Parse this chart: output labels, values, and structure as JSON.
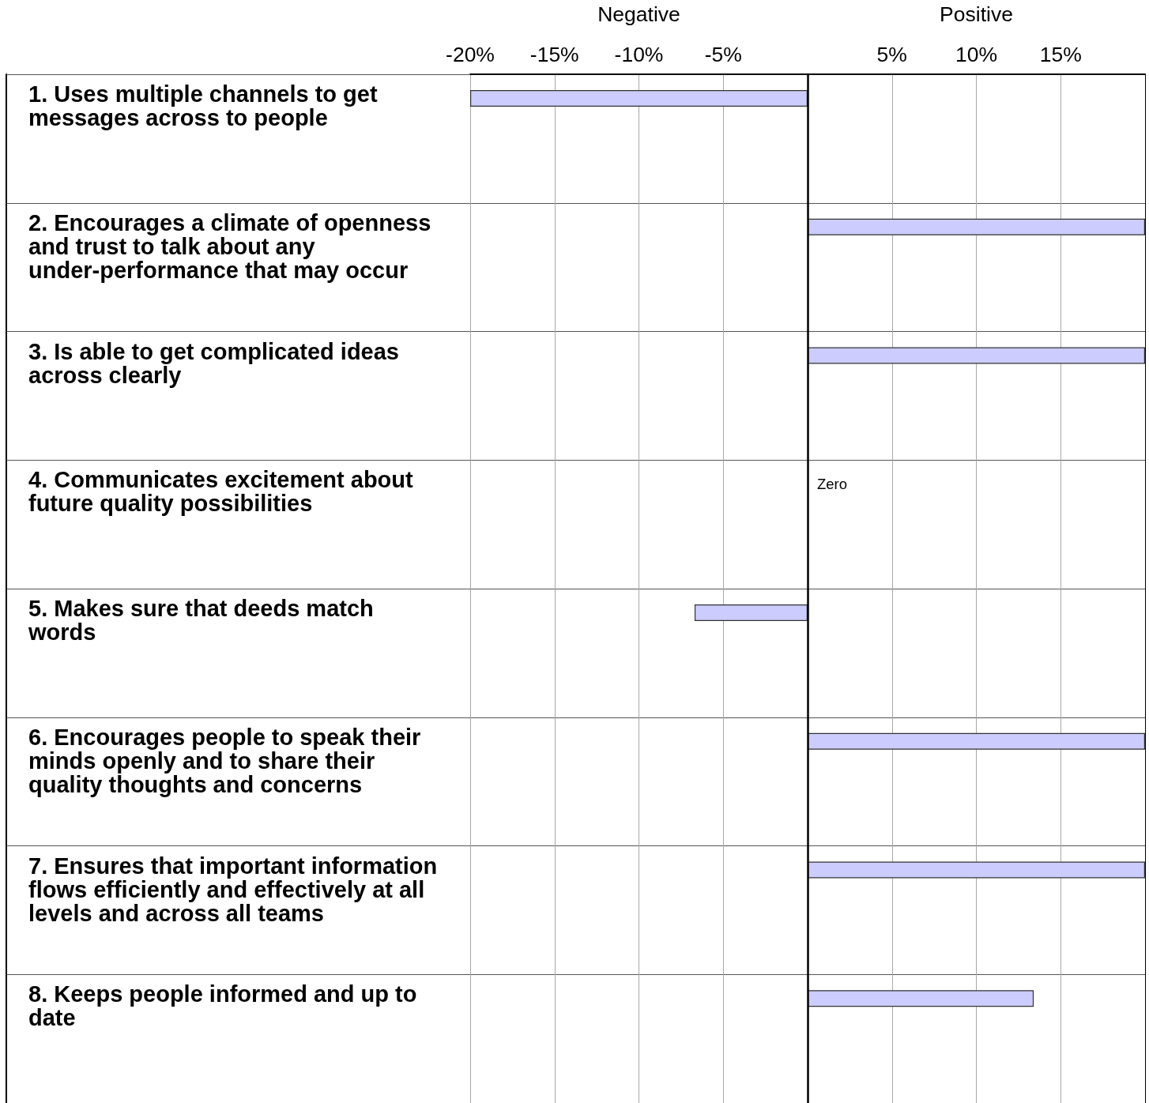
{
  "chart_data": {
    "type": "bar",
    "orientation": "horizontal",
    "categories": [
      "1. Uses multiple channels to get messages across to people",
      "2. Encourages a climate of openness and trust to talk about any under-performance that may occur",
      "3. Is able to get complicated ideas across clearly",
      "4. Communicates excitement about future quality possibilities",
      "5. Makes sure that deeds match words",
      "6. Encourages people to speak their minds openly and to share their quality thoughts and concerns",
      "7. Ensures that important information flows efficiently and effectively at all levels and across all teams",
      "8. Keeps people informed and up to date"
    ],
    "values": [
      -20,
      20,
      20,
      0,
      -6.7,
      20,
      20,
      13.4
    ],
    "color": "#ccccff",
    "value_labels": [
      null,
      null,
      null,
      "Zero",
      null,
      null,
      null,
      null
    ],
    "xlim": [
      -20,
      20
    ],
    "xticks": [
      {
        "value": -20,
        "label": "-20%"
      },
      {
        "value": -15,
        "label": "-15%"
      },
      {
        "value": -10,
        "label": "-10%"
      },
      {
        "value": -5,
        "label": "-5%"
      },
      {
        "value": 0,
        "label": null
      },
      {
        "value": 5,
        "label": "5%"
      },
      {
        "value": 10,
        "label": "10%"
      },
      {
        "value": 15,
        "label": "15%"
      },
      {
        "value": 20,
        "label": null
      }
    ],
    "grid": true,
    "ref_lines": [
      {
        "axis": "x",
        "value": 0,
        "color": "#000000"
      }
    ],
    "annotations": [
      "Negative",
      "Positive"
    ]
  }
}
